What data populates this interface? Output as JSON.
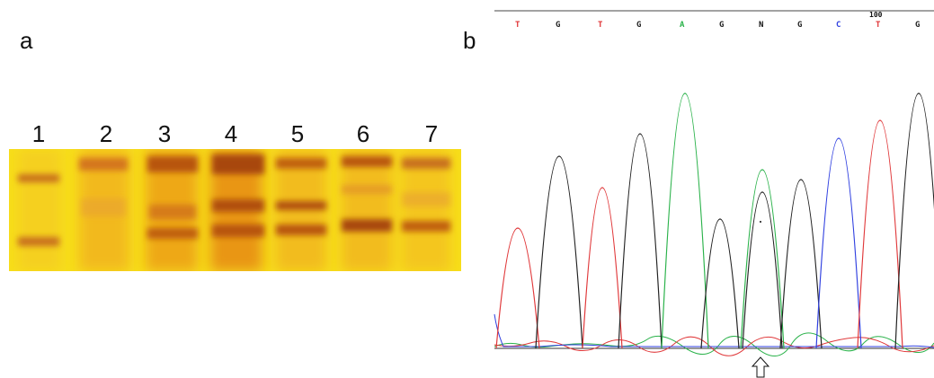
{
  "panel_a": {
    "label": "a",
    "lanes": [
      "1",
      "2",
      "3",
      "4",
      "5",
      "6",
      "7"
    ]
  },
  "panel_b": {
    "label": "b",
    "position_marker": "100",
    "bases": [
      "T",
      "G",
      "T",
      "G",
      "A",
      "G",
      "N",
      "G",
      "C",
      "T",
      "G"
    ]
  },
  "colors": {
    "gel_background": "#f7de1a",
    "band": "#c0620e",
    "T": "#e0383a",
    "G": "#222222",
    "A": "#2ab24a",
    "C": "#3040e0",
    "N": "#111111"
  },
  "icons": {
    "mutation_marker": "up-arrow-outline-icon"
  }
}
